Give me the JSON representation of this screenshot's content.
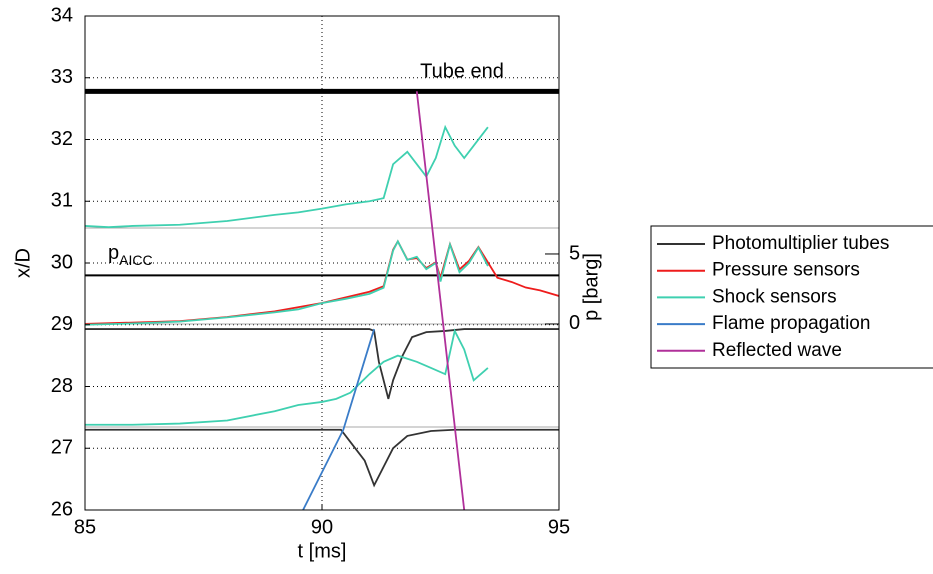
{
  "chart_data": {
    "type": "line",
    "xlabel": "t [ms]",
    "ylabel": "x/D",
    "y2label": "p [barg]",
    "xlim": [
      85,
      95
    ],
    "ylim": [
      26,
      34
    ],
    "y2lim": [
      -13.29,
      22
    ],
    "xticks": [
      85,
      90,
      95
    ],
    "yticks": [
      26,
      27,
      28,
      29,
      30,
      31,
      32,
      33,
      34
    ],
    "y2ticks": [
      0,
      5
    ],
    "grid": true,
    "hlines": [
      {
        "value": 32.78,
        "label": "Tube end"
      },
      {
        "value": 29.8,
        "label": "p",
        "label_sub": "AICC"
      }
    ],
    "series": [
      {
        "name": "Photomultiplier tubes",
        "color": "#333333",
        "traces": [
          {
            "x": [
              85,
              91,
              91.1,
              91.2,
              91.4,
              91.5,
              91.7,
              91.9,
              92.2,
              92.6,
              93,
              95
            ],
            "values": [
              28.93,
              28.93,
              28.9,
              28.4,
              27.8,
              28.1,
              28.5,
              28.8,
              28.88,
              28.9,
              28.93,
              28.93
            ]
          },
          {
            "x": [
              85,
              90.4,
              90.6,
              90.9,
              91.1,
              91.3,
              91.5,
              91.8,
              92.3,
              92.8,
              95
            ],
            "values": [
              27.3,
              27.3,
              27.1,
              26.8,
              26.4,
              26.7,
              27.0,
              27.2,
              27.28,
              27.3,
              27.3
            ]
          }
        ]
      },
      {
        "name": "Pressure sensors",
        "color": "#ee1c1c",
        "axis": "y2",
        "traces": [
          {
            "x": [
              85,
              87,
              88,
              89,
              90,
              91,
              91.3,
              91.5,
              91.6,
              91.8,
              92,
              92.2,
              92.4,
              92.5,
              92.7,
              92.9,
              93.1,
              93.3,
              93.5,
              93.7,
              94,
              94.3,
              94.6,
              95
            ],
            "values": [
              0,
              0.2,
              0.5,
              0.9,
              1.5,
              2.3,
              2.7,
              5.3,
              5.9,
              4.6,
              4.7,
              4.0,
              4.4,
              3.3,
              5.7,
              3.9,
              4.5,
              5.5,
              4.4,
              3.3,
              3.0,
              2.6,
              2.4,
              2.0
            ]
          }
        ]
      },
      {
        "name": "Shock sensors",
        "color": "#3fd0b0",
        "traces": [
          {
            "x": [
              85,
              85.5,
              86,
              87,
              88,
              89,
              89.5,
              90,
              90.5,
              91,
              91.3,
              91.5,
              91.8,
              92,
              92.2,
              92.4,
              92.6,
              92.8,
              93,
              93.2,
              93.5
            ],
            "values": [
              30.6,
              30.58,
              30.6,
              30.62,
              30.68,
              30.78,
              30.82,
              30.88,
              30.95,
              31.0,
              31.05,
              31.6,
              31.8,
              31.6,
              31.4,
              31.7,
              32.2,
              31.9,
              31.7,
              31.9,
              32.2
            ]
          },
          {
            "x": [
              85,
              86,
              87,
              88,
              89,
              89.5,
              90,
              90.5,
              91,
              91.3,
              91.5,
              91.6,
              91.8,
              92,
              92.2,
              92.4,
              92.5,
              92.7,
              92.9,
              93.1,
              93.3,
              93.5
            ],
            "values": [
              29.0,
              29.02,
              29.05,
              29.12,
              29.2,
              29.25,
              29.35,
              29.42,
              29.5,
              29.6,
              30.2,
              30.35,
              30.05,
              30.1,
              29.9,
              30.0,
              29.7,
              30.3,
              29.85,
              30.0,
              30.25,
              29.95
            ]
          },
          {
            "x": [
              85,
              86,
              87,
              88,
              89,
              89.5,
              90,
              90.3,
              90.6,
              91,
              91.3,
              91.6,
              92,
              92.3,
              92.6,
              92.8,
              93,
              93.2,
              93.5
            ],
            "values": [
              27.38,
              27.38,
              27.4,
              27.45,
              27.6,
              27.7,
              27.75,
              27.8,
              27.9,
              28.2,
              28.4,
              28.5,
              28.4,
              28.3,
              28.2,
              28.9,
              28.6,
              28.1,
              28.3
            ]
          }
        ]
      },
      {
        "name": "Flame propagation",
        "color": "#3a7cc8",
        "traces": [
          {
            "x": [
              89.6,
              90.45,
              91.1
            ],
            "values": [
              26,
              27.3,
              28.93
            ]
          }
        ]
      },
      {
        "name": "Reflected wave",
        "color": "#b0309a",
        "traces": [
          {
            "x": [
              92.0,
              93.0
            ],
            "values": [
              32.78,
              26
            ]
          }
        ]
      }
    ]
  }
}
